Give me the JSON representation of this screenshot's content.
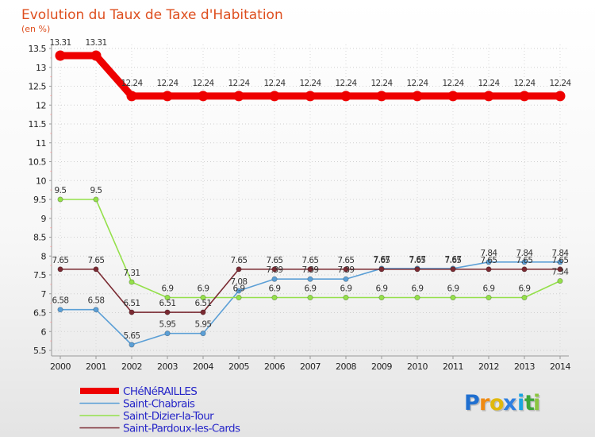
{
  "chart_data": {
    "type": "line",
    "title": "Evolution du Taux de Taxe d'Habitation",
    "subtitle": "(en %)",
    "xlabel": "",
    "ylabel": "(en %)",
    "ylim": [
      5.5,
      13.5
    ],
    "yticks": [
      5.5,
      6,
      6.5,
      7,
      7.5,
      8,
      8.5,
      9,
      9.5,
      10,
      10.5,
      11,
      11.5,
      12,
      12.5,
      13,
      13.5
    ],
    "ytick_labels": [
      "5.5",
      "6",
      "6.5",
      "7",
      "7.5",
      "8",
      "8.5",
      "9",
      "9.5",
      "10",
      "10.5",
      "11",
      "11.5",
      "12",
      "12.5",
      "13",
      "13.5"
    ],
    "x": [
      "2000",
      "2001",
      "2002",
      "2003",
      "2004",
      "2005",
      "2006",
      "2007",
      "2008",
      "2009",
      "2010",
      "2011",
      "2012",
      "2013",
      "2014"
    ],
    "series": [
      {
        "name": "Saint-Chabrais",
        "color": "#5b9fd6",
        "values": [
          6.58,
          6.58,
          5.65,
          5.95,
          5.95,
          7.08,
          7.39,
          7.39,
          7.39,
          7.67,
          7.67,
          7.67,
          7.84,
          7.84,
          7.84
        ],
        "labels": [
          "6.58",
          "6.58",
          "5.65",
          "5.95",
          "5.95",
          "7.08",
          "7.39",
          "7.39",
          "7.39",
          "7.67",
          "7.67",
          "7.67",
          "7.84",
          "7.84",
          "7.84"
        ]
      },
      {
        "name": "Saint-Dizier-la-Tour",
        "color": "#94e04a",
        "values": [
          9.5,
          9.5,
          7.31,
          6.9,
          6.9,
          6.9,
          6.9,
          6.9,
          6.9,
          6.9,
          6.9,
          6.9,
          6.9,
          6.9,
          7.34
        ],
        "labels": [
          "9.5",
          "9.5",
          "7.31",
          "6.9",
          "6.9",
          "6.9",
          "6.9",
          "6.9",
          "6.9",
          "6.9",
          "6.9",
          "6.9",
          "6.9",
          "6.9",
          "7.34"
        ]
      },
      {
        "name": "Saint-Pardoux-les-Cards",
        "color": "#7a2a32",
        "values": [
          7.65,
          7.65,
          6.51,
          6.51,
          6.51,
          7.65,
          7.65,
          7.65,
          7.65,
          7.65,
          7.65,
          7.65,
          7.65,
          7.65,
          7.65
        ],
        "labels": [
          "7.65",
          "7.65",
          "6.51",
          "6.51",
          "6.51",
          "7.65",
          "7.65",
          "7.65",
          "7.65",
          "7.65",
          "7.65",
          "7.65",
          "7.65",
          "7.65",
          "7.65"
        ]
      },
      {
        "name": "CHéNéRAILLES",
        "color": "#ee0000",
        "values": [
          13.31,
          13.31,
          12.24,
          12.24,
          12.24,
          12.24,
          12.24,
          12.24,
          12.24,
          12.24,
          12.24,
          12.24,
          12.24,
          12.24,
          12.24
        ],
        "labels": [
          "13.31",
          "13.31",
          "12.24",
          "12.24",
          "12.24",
          "12.24",
          "12.24",
          "12.24",
          "12.24",
          "12.24",
          "12.24",
          "12.24",
          "12.24",
          "12.24",
          "12.24"
        ]
      }
    ],
    "legend": {
      "position": "bottom-left",
      "entries": [
        "CHéNéRAILLES",
        "Saint-Chabrais",
        "Saint-Dizier-la-Tour",
        "Saint-Pardoux-les-Cards"
      ]
    }
  },
  "branding": {
    "logo_letters": [
      "P",
      "r",
      "o",
      "x",
      "i",
      "t",
      "i"
    ],
    "logo_colors": [
      "#1f6fd0",
      "#ef8a12",
      "#e0b80c",
      "#2e7fe0",
      "#1aa5e0",
      "#3fa63a",
      "#8bc53f"
    ]
  }
}
